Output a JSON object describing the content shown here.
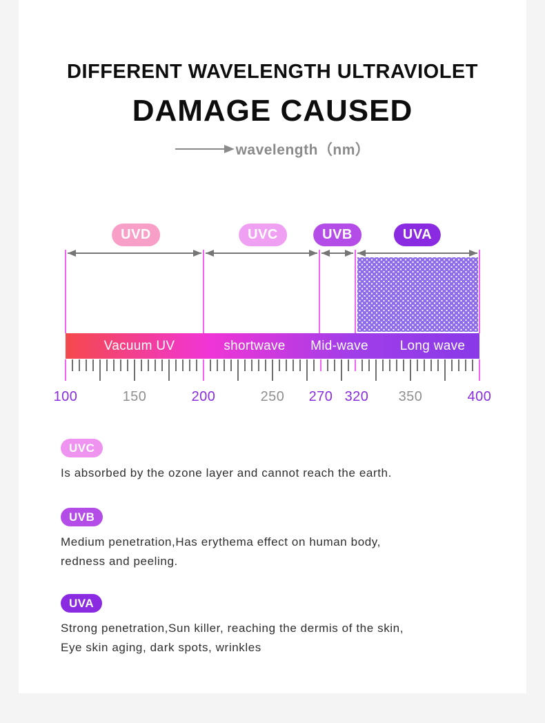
{
  "page": {
    "background": "#f4f4f4",
    "card_background": "#ffffff"
  },
  "header": {
    "title_line1": "DIFFERENT WAVELENGTH ULTRAVIOLET",
    "title_line2": "DAMAGE CAUSED",
    "axis_label": "wavelength（nm）"
  },
  "chart_data": {
    "type": "diagram",
    "subtype": "wavelength-band-scale",
    "unit": "nm",
    "axis_range": [
      100,
      400
    ],
    "boundaries": [
      100,
      200,
      270,
      320,
      400
    ],
    "bands": [
      {
        "pill": "UVD",
        "pill_color": "#f79fc6",
        "range_nm": "100-200",
        "bar_label": "Vacuum UV",
        "hatched": false
      },
      {
        "pill": "UVC",
        "pill_color": "#efa0f2",
        "range_nm": "200-270",
        "bar_label": "shortwave",
        "hatched": false
      },
      {
        "pill": "UVB",
        "pill_color": "#b44ce7",
        "range_nm": "270-320",
        "bar_label": "Mid-wave",
        "hatched": false
      },
      {
        "pill": "UVA",
        "pill_color": "#8a2be2",
        "range_nm": "320-400",
        "bar_label": "Long wave",
        "hatched": true
      }
    ],
    "scale_numbers": [
      {
        "label": "100",
        "highlight": true
      },
      {
        "label": "150",
        "highlight": false
      },
      {
        "label": "200",
        "highlight": true
      },
      {
        "label": "250",
        "highlight": false
      },
      {
        "label": "270",
        "highlight": true
      },
      {
        "label": "320",
        "highlight": true
      },
      {
        "label": "350",
        "highlight": false
      },
      {
        "label": "400",
        "highlight": true
      }
    ],
    "colors": {
      "bar_gradient": [
        "#f4494c",
        "#f135d5",
        "#a03ee9",
        "#8939e8"
      ],
      "guide_line": "#f162f2",
      "arrow": "#757575",
      "tick": "#6e6e6e",
      "number_highlight": "#8b2be2",
      "number_muted": "#8f8f8f",
      "dots": "#8e6ce9"
    }
  },
  "sections": [
    {
      "pill": "UVC",
      "pill_color": "#ee93f0",
      "lines": [
        "Is absorbed by the ozone layer and cannot reach the earth."
      ]
    },
    {
      "pill": "UVB",
      "pill_color": "#b44ce7",
      "lines": [
        "Medium penetration,Has erythema effect on human body,",
        "redness and peeling."
      ]
    },
    {
      "pill": "UVA",
      "pill_color": "#8a2be2",
      "lines": [
        "Strong penetration,Sun killer, reaching the dermis of the skin,",
        "Eye skin aging, dark spots, wrinkles"
      ]
    }
  ]
}
